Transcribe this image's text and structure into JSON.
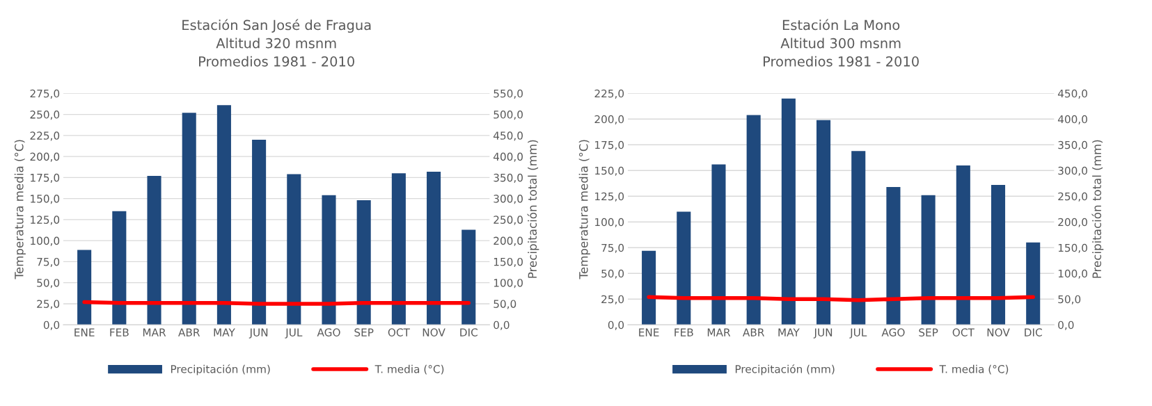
{
  "chart_data": [
    {
      "type": "bar",
      "title": "Estación San José de Fragua\nAltitud 320 msnm\nPromedios 1981 - 2010",
      "ylabel": "Temperatura media (°C)",
      "y2label": "Precipitación total (mm)",
      "categories": [
        "ENE",
        "FEB",
        "MAR",
        "ABR",
        "MAY",
        "JUN",
        "JUL",
        "AGO",
        "SEP",
        "OCT",
        "NOV",
        "DIC"
      ],
      "series": [
        {
          "name": "Precipitación (mm)",
          "axis": "y2",
          "color": "#1f497d",
          "values": [
            178,
            270,
            354,
            504,
            522,
            440,
            358,
            308,
            296,
            360,
            364,
            226
          ]
        },
        {
          "name": "T. media (°C)",
          "type": "line",
          "axis": "y",
          "color": "#ff0000",
          "values": [
            27,
            26,
            26,
            26,
            26,
            25,
            25,
            25,
            26,
            26,
            26,
            26
          ]
        }
      ],
      "ylim": [
        0,
        275
      ],
      "yticks": [
        {
          "value": 0,
          "label": "0,0"
        },
        {
          "value": 25,
          "label": "25,0"
        },
        {
          "value": 50,
          "label": "50,0"
        },
        {
          "value": 75,
          "label": "75,0"
        },
        {
          "value": 100,
          "label": "100,0"
        },
        {
          "value": 125,
          "label": "125,0"
        },
        {
          "value": 150,
          "label": "150,0"
        },
        {
          "value": 175,
          "label": "175,0"
        },
        {
          "value": 200,
          "label": "200,0"
        },
        {
          "value": 225,
          "label": "225,0"
        },
        {
          "value": 250,
          "label": "250,0"
        },
        {
          "value": 275,
          "label": "275,0"
        }
      ],
      "y2lim": [
        0,
        550
      ],
      "y2ticks": [
        {
          "value": 0,
          "label": "0,0"
        },
        {
          "value": 50,
          "label": "50,0"
        },
        {
          "value": 100,
          "label": "100,0"
        },
        {
          "value": 150,
          "label": "150,0"
        },
        {
          "value": 200,
          "label": "200,0"
        },
        {
          "value": 250,
          "label": "250,0"
        },
        {
          "value": 300,
          "label": "300,0"
        },
        {
          "value": 350,
          "label": "350,0"
        },
        {
          "value": 400,
          "label": "400,0"
        },
        {
          "value": 450,
          "label": "450,0"
        },
        {
          "value": 500,
          "label": "500,0"
        },
        {
          "value": 550,
          "label": "550,0"
        }
      ],
      "grid": "y",
      "legend": "bottom"
    },
    {
      "type": "bar",
      "title": "Estación La Mono\nAltitud 300 msnm\nPromedios 1981 - 2010",
      "ylabel": "Temperatura media (°C)",
      "y2label": "Precipitación total (mm)",
      "categories": [
        "ENE",
        "FEB",
        "MAR",
        "ABR",
        "MAY",
        "JUN",
        "JUL",
        "AGO",
        "SEP",
        "OCT",
        "NOV",
        "DIC"
      ],
      "series": [
        {
          "name": "Precipitación (mm)",
          "axis": "y2",
          "color": "#1f497d",
          "values": [
            144,
            220,
            312,
            408,
            440,
            398,
            338,
            268,
            252,
            310,
            272,
            160
          ]
        },
        {
          "name": "T. media (°C)",
          "type": "line",
          "axis": "y",
          "color": "#ff0000",
          "values": [
            27,
            26,
            26,
            26,
            25,
            25,
            24,
            25,
            26,
            26,
            26,
            27
          ]
        }
      ],
      "ylim": [
        0,
        225
      ],
      "yticks": [
        {
          "value": 0,
          "label": "0,0"
        },
        {
          "value": 25,
          "label": "25,0"
        },
        {
          "value": 50,
          "label": "50,0"
        },
        {
          "value": 75,
          "label": "75,0"
        },
        {
          "value": 100,
          "label": "100,0"
        },
        {
          "value": 125,
          "label": "125,0"
        },
        {
          "value": 150,
          "label": "150,0"
        },
        {
          "value": 175,
          "label": "175,0"
        },
        {
          "value": 200,
          "label": "200,0"
        },
        {
          "value": 225,
          "label": "225,0"
        }
      ],
      "y2lim": [
        0,
        450
      ],
      "y2ticks": [
        {
          "value": 0,
          "label": "0,0"
        },
        {
          "value": 50,
          "label": "50,0"
        },
        {
          "value": 100,
          "label": "100,0"
        },
        {
          "value": 150,
          "label": "150,0"
        },
        {
          "value": 200,
          "label": "200,0"
        },
        {
          "value": 250,
          "label": "250,0"
        },
        {
          "value": 300,
          "label": "300,0"
        },
        {
          "value": 350,
          "label": "350,0"
        },
        {
          "value": 400,
          "label": "400,0"
        },
        {
          "value": 450,
          "label": "450,0"
        }
      ],
      "grid": "y",
      "legend": "bottom"
    }
  ]
}
